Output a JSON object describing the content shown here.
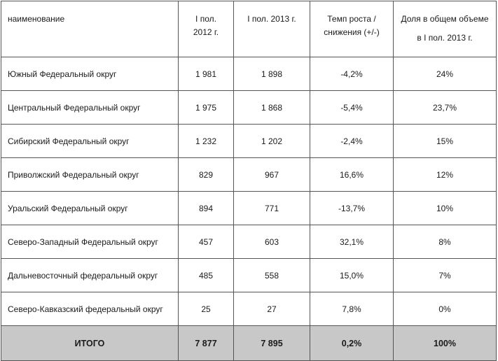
{
  "header": {
    "col1": "наименование",
    "col2_line1": "I пол.",
    "col2_line2": "2012 г.",
    "col3": "I пол. 2013 г.",
    "col4_line1": "Темп роста /",
    "col4_line2": "снижения (+/-)",
    "col5_line1": "Доля  в общем объеме",
    "col5_line2": "в I пол. 2013 г."
  },
  "rows": [
    {
      "name": "Южный Федеральный округ",
      "y2012": "1 981",
      "y2013": "1 898",
      "growth": "-4,2%",
      "share": "24%"
    },
    {
      "name": "Центральный Федеральный округ",
      "y2012": "1 975",
      "y2013": "1 868",
      "growth": "-5,4%",
      "share": "23,7%"
    },
    {
      "name": "Сибирский Федеральный округ",
      "y2012": "1 232",
      "y2013": "1 202",
      "growth": "-2,4%",
      "share": "15%"
    },
    {
      "name": "Приволжский Федеральный округ",
      "y2012": "829",
      "y2013": "967",
      "growth": "16,6%",
      "share": "12%"
    },
    {
      "name": "Уральский Федеральный округ",
      "y2012": "894",
      "y2013": "771",
      "growth": "-13,7%",
      "share": "10%"
    },
    {
      "name": "Северо-Западный Федеральный округ",
      "y2012": "457",
      "y2013": "603",
      "growth": "32,1%",
      "share": "8%"
    },
    {
      "name": "Дальневосточный федеральный округ",
      "y2012": "485",
      "y2013": "558",
      "growth": "15,0%",
      "share": "7%"
    },
    {
      "name": "Северо-Кавказский федеральный округ",
      "y2012": "25",
      "y2013": "27",
      "growth": "7,8%",
      "share": "0%"
    }
  ],
  "total": {
    "name": "ИТОГО",
    "y2012": "7 877",
    "y2013": "7 895",
    "growth": "0,2%",
    "share": "100%"
  },
  "colors": {
    "total_row_bg": "#c8c8c8",
    "border": "#555555"
  }
}
